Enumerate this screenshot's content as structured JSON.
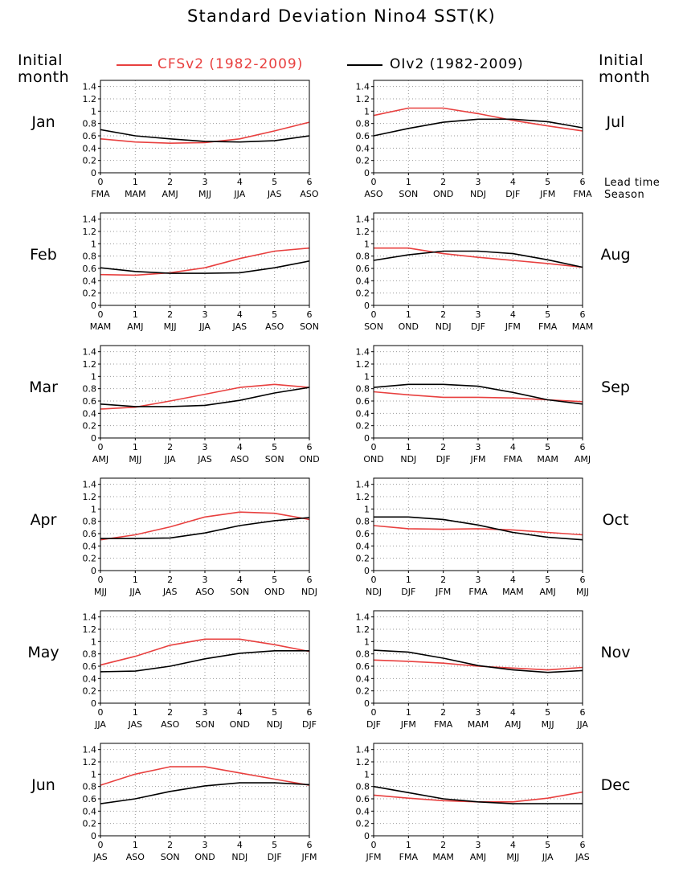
{
  "title": "Standard Deviation Nino4 SST(K)",
  "side_label_left": [
    "Initial",
    "month"
  ],
  "side_label_right": [
    "Initial",
    "month"
  ],
  "lead_note": [
    "Lead time",
    "Season"
  ],
  "colors": {
    "cfsv2": "#e8403f",
    "oiv2": "#000000",
    "grid": "#9a9a9a"
  },
  "legend": [
    {
      "label": "CFSv2 (1982-2009)",
      "color": "#e8403f"
    },
    {
      "label": "OIv2 (1982-2009)",
      "color": "#000000"
    }
  ],
  "chart_data": [
    {
      "month": "Jan",
      "type": "line",
      "x": [
        0,
        1,
        2,
        3,
        4,
        5,
        6
      ],
      "xticklabels": [
        "FMA",
        "MAM",
        "AMJ",
        "MJJ",
        "JJA",
        "JAS",
        "ASO"
      ],
      "ylim": [
        0,
        1.5
      ],
      "yticks": [
        "0",
        "0.2",
        "0.4",
        "0.6",
        "0.8",
        "1",
        "1.2",
        "1.4"
      ],
      "series": [
        {
          "name": "CFSv2 (1982-2009)",
          "values": [
            0.55,
            0.5,
            0.48,
            0.49,
            0.55,
            0.68,
            0.82
          ]
        },
        {
          "name": "OIv2 (1982-2009)",
          "values": [
            0.7,
            0.6,
            0.55,
            0.51,
            0.5,
            0.52,
            0.6
          ]
        }
      ]
    },
    {
      "month": "Jul",
      "type": "line",
      "x": [
        0,
        1,
        2,
        3,
        4,
        5,
        6
      ],
      "xticklabels": [
        "ASO",
        "SON",
        "OND",
        "NDJ",
        "DJF",
        "JFM",
        "FMA"
      ],
      "ylim": [
        0,
        1.5
      ],
      "yticks": [
        "0",
        "0.2",
        "0.4",
        "0.6",
        "0.8",
        "1",
        "1.2",
        "1.4"
      ],
      "series": [
        {
          "name": "CFSv2 (1982-2009)",
          "values": [
            0.93,
            1.05,
            1.05,
            0.96,
            0.85,
            0.76,
            0.68
          ]
        },
        {
          "name": "OIv2 (1982-2009)",
          "values": [
            0.6,
            0.72,
            0.82,
            0.87,
            0.87,
            0.83,
            0.73
          ]
        }
      ]
    },
    {
      "month": "Feb",
      "type": "line",
      "x": [
        0,
        1,
        2,
        3,
        4,
        5,
        6
      ],
      "xticklabels": [
        "MAM",
        "AMJ",
        "MJJ",
        "JJA",
        "JAS",
        "ASO",
        "SON"
      ],
      "ylim": [
        0,
        1.5
      ],
      "yticks": [
        "0",
        "0.2",
        "0.4",
        "0.6",
        "0.8",
        "1",
        "1.2",
        "1.4"
      ],
      "series": [
        {
          "name": "CFSv2 (1982-2009)",
          "values": [
            0.5,
            0.49,
            0.53,
            0.61,
            0.76,
            0.88,
            0.93
          ]
        },
        {
          "name": "OIv2 (1982-2009)",
          "values": [
            0.61,
            0.55,
            0.52,
            0.52,
            0.53,
            0.61,
            0.72
          ]
        }
      ]
    },
    {
      "month": "Aug",
      "type": "line",
      "x": [
        0,
        1,
        2,
        3,
        4,
        5,
        6
      ],
      "xticklabels": [
        "SON",
        "OND",
        "NDJ",
        "DJF",
        "JFM",
        "FMA",
        "MAM"
      ],
      "ylim": [
        0,
        1.5
      ],
      "yticks": [
        "0",
        "0.2",
        "0.4",
        "0.6",
        "0.8",
        "1",
        "1.2",
        "1.4"
      ],
      "series": [
        {
          "name": "CFSv2 (1982-2009)",
          "values": [
            0.93,
            0.93,
            0.84,
            0.78,
            0.73,
            0.68,
            0.62
          ]
        },
        {
          "name": "OIv2 (1982-2009)",
          "values": [
            0.73,
            0.82,
            0.88,
            0.88,
            0.84,
            0.74,
            0.62
          ]
        }
      ]
    },
    {
      "month": "Mar",
      "type": "line",
      "x": [
        0,
        1,
        2,
        3,
        4,
        5,
        6
      ],
      "xticklabels": [
        "AMJ",
        "MJJ",
        "JJA",
        "JAS",
        "ASO",
        "SON",
        "OND"
      ],
      "ylim": [
        0,
        1.5
      ],
      "yticks": [
        "0",
        "0.2",
        "0.4",
        "0.6",
        "0.8",
        "1",
        "1.2",
        "1.4"
      ],
      "series": [
        {
          "name": "CFSv2 (1982-2009)",
          "values": [
            0.47,
            0.5,
            0.6,
            0.71,
            0.82,
            0.87,
            0.82
          ]
        },
        {
          "name": "OIv2 (1982-2009)",
          "values": [
            0.55,
            0.51,
            0.51,
            0.53,
            0.61,
            0.73,
            0.82
          ]
        }
      ]
    },
    {
      "month": "Sep",
      "type": "line",
      "x": [
        0,
        1,
        2,
        3,
        4,
        5,
        6
      ],
      "xticklabels": [
        "OND",
        "NDJ",
        "DJF",
        "JFM",
        "FMA",
        "MAM",
        "AMJ"
      ],
      "ylim": [
        0,
        1.5
      ],
      "yticks": [
        "0",
        "0.2",
        "0.4",
        "0.6",
        "0.8",
        "1",
        "1.2",
        "1.4"
      ],
      "series": [
        {
          "name": "CFSv2 (1982-2009)",
          "values": [
            0.75,
            0.7,
            0.66,
            0.66,
            0.65,
            0.62,
            0.59
          ]
        },
        {
          "name": "OIv2 (1982-2009)",
          "values": [
            0.82,
            0.87,
            0.87,
            0.84,
            0.74,
            0.62,
            0.55
          ]
        }
      ]
    },
    {
      "month": "Apr",
      "type": "line",
      "x": [
        0,
        1,
        2,
        3,
        4,
        5,
        6
      ],
      "xticklabels": [
        "MJJ",
        "JJA",
        "JAS",
        "ASO",
        "SON",
        "OND",
        "NDJ"
      ],
      "ylim": [
        0,
        1.5
      ],
      "yticks": [
        "0",
        "0.2",
        "0.4",
        "0.6",
        "0.8",
        "1",
        "1.2",
        "1.4"
      ],
      "series": [
        {
          "name": "CFSv2 (1982-2009)",
          "values": [
            0.5,
            0.58,
            0.71,
            0.87,
            0.95,
            0.93,
            0.83
          ]
        },
        {
          "name": "OIv2 (1982-2009)",
          "values": [
            0.52,
            0.52,
            0.53,
            0.61,
            0.73,
            0.81,
            0.86
          ]
        }
      ]
    },
    {
      "month": "Oct",
      "type": "line",
      "x": [
        0,
        1,
        2,
        3,
        4,
        5,
        6
      ],
      "xticklabels": [
        "NDJ",
        "DJF",
        "JFM",
        "FMA",
        "MAM",
        "AMJ",
        "MJJ"
      ],
      "ylim": [
        0,
        1.5
      ],
      "yticks": [
        "0",
        "0.2",
        "0.4",
        "0.6",
        "0.8",
        "1",
        "1.2",
        "1.4"
      ],
      "series": [
        {
          "name": "CFSv2 (1982-2009)",
          "values": [
            0.73,
            0.68,
            0.67,
            0.68,
            0.66,
            0.62,
            0.58
          ]
        },
        {
          "name": "OIv2 (1982-2009)",
          "values": [
            0.87,
            0.87,
            0.83,
            0.74,
            0.62,
            0.54,
            0.5
          ]
        }
      ]
    },
    {
      "month": "May",
      "type": "line",
      "x": [
        0,
        1,
        2,
        3,
        4,
        5,
        6
      ],
      "xticklabels": [
        "JJA",
        "JAS",
        "ASO",
        "SON",
        "OND",
        "NDJ",
        "DJF"
      ],
      "ylim": [
        0,
        1.5
      ],
      "yticks": [
        "0",
        "0.2",
        "0.4",
        "0.6",
        "0.8",
        "1",
        "1.2",
        "1.4"
      ],
      "series": [
        {
          "name": "CFSv2 (1982-2009)",
          "values": [
            0.62,
            0.76,
            0.94,
            1.04,
            1.04,
            0.95,
            0.84
          ]
        },
        {
          "name": "OIv2 (1982-2009)",
          "values": [
            0.51,
            0.52,
            0.6,
            0.72,
            0.81,
            0.85,
            0.85
          ]
        }
      ]
    },
    {
      "month": "Nov",
      "type": "line",
      "x": [
        0,
        1,
        2,
        3,
        4,
        5,
        6
      ],
      "xticklabels": [
        "DJF",
        "JFM",
        "FMA",
        "MAM",
        "AMJ",
        "MJJ",
        "JJA"
      ],
      "ylim": [
        0,
        1.5
      ],
      "yticks": [
        "0",
        "0.2",
        "0.4",
        "0.6",
        "0.8",
        "1",
        "1.2",
        "1.4"
      ],
      "series": [
        {
          "name": "CFSv2 (1982-2009)",
          "values": [
            0.7,
            0.68,
            0.65,
            0.6,
            0.57,
            0.54,
            0.58
          ]
        },
        {
          "name": "OIv2 (1982-2009)",
          "values": [
            0.86,
            0.83,
            0.73,
            0.61,
            0.54,
            0.5,
            0.53
          ]
        }
      ]
    },
    {
      "month": "Jun",
      "type": "line",
      "x": [
        0,
        1,
        2,
        3,
        4,
        5,
        6
      ],
      "xticklabels": [
        "JAS",
        "ASO",
        "SON",
        "OND",
        "NDJ",
        "DJF",
        "JFM"
      ],
      "ylim": [
        0,
        1.5
      ],
      "yticks": [
        "0",
        "0.2",
        "0.4",
        "0.6",
        "0.8",
        "1",
        "1.2",
        "1.4"
      ],
      "series": [
        {
          "name": "CFSv2 (1982-2009)",
          "values": [
            0.82,
            1.0,
            1.12,
            1.12,
            1.02,
            0.92,
            0.82
          ]
        },
        {
          "name": "OIv2 (1982-2009)",
          "values": [
            0.52,
            0.6,
            0.72,
            0.81,
            0.86,
            0.86,
            0.83
          ]
        }
      ]
    },
    {
      "month": "Dec",
      "type": "line",
      "x": [
        0,
        1,
        2,
        3,
        4,
        5,
        6
      ],
      "xticklabels": [
        "JFM",
        "FMA",
        "MAM",
        "AMJ",
        "MJJ",
        "JJA",
        "JAS"
      ],
      "ylim": [
        0,
        1.5
      ],
      "yticks": [
        "0",
        "0.2",
        "0.4",
        "0.6",
        "0.8",
        "1",
        "1.2",
        "1.4"
      ],
      "series": [
        {
          "name": "CFSv2 (1982-2009)",
          "values": [
            0.66,
            0.61,
            0.57,
            0.55,
            0.55,
            0.61,
            0.71
          ]
        },
        {
          "name": "OIv2 (1982-2009)",
          "values": [
            0.8,
            0.7,
            0.6,
            0.55,
            0.52,
            0.52,
            0.52
          ]
        }
      ]
    }
  ]
}
